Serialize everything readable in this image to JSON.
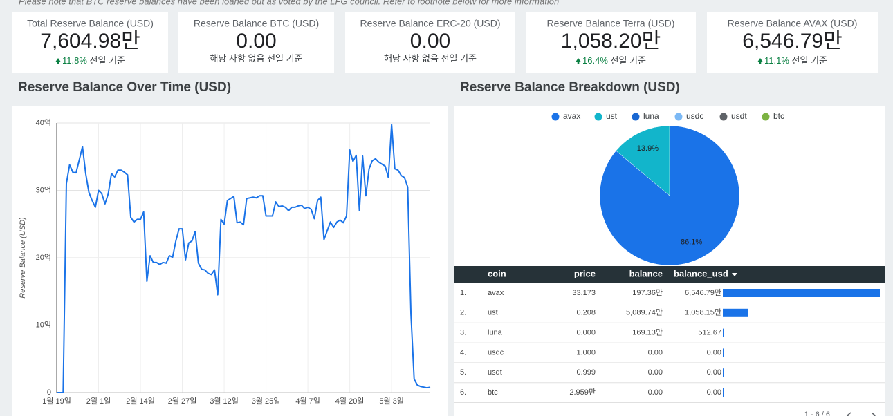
{
  "note": "Please note that BTC reserve balances have been loaned out as voted by the LFG council. Refer to footnote below for more information",
  "scorecards": [
    {
      "label": "Total Reserve Balance (USD)",
      "value": "7,604.98만",
      "delta": "11.8%",
      "comparison": "전일 기준"
    },
    {
      "label": "Reserve Balance BTC (USD)",
      "value": "0.00",
      "comparison": "해당 사항 없음 전일 기준"
    },
    {
      "label": "Reserve Balance ERC-20 (USD)",
      "value": "0.00",
      "comparison": "해당 사항 없음 전일 기준"
    },
    {
      "label": "Reserve Balance Terra (USD)",
      "value": "1,058.20만",
      "delta": "16.4%",
      "comparison": "전일 기준"
    },
    {
      "label": "Reserve Balance AVAX (USD)",
      "value": "6,546.79만",
      "delta": "11.1%",
      "comparison": "전일 기준"
    }
  ],
  "chart_data": [
    {
      "type": "line",
      "title": "Reserve Balance Over Time (USD)",
      "y_label": "Reserve Balance (USD)",
      "color": "#1a73e8",
      "grid": true,
      "ylim": [
        0,
        40
      ],
      "yticks": [
        0,
        {
          "value": 10,
          "label": "10억"
        },
        {
          "value": 20,
          "label": "20억"
        },
        {
          "value": 30,
          "label": "30억"
        },
        {
          "value": 40,
          "label": "40억"
        }
      ],
      "categories": [
        "1월 19일",
        null,
        null,
        null,
        null,
        null,
        null,
        null,
        null,
        null,
        null,
        null,
        null,
        "2월 1일",
        null,
        null,
        null,
        null,
        null,
        null,
        null,
        null,
        null,
        null,
        null,
        null,
        "2월 14일",
        null,
        null,
        null,
        null,
        null,
        null,
        null,
        null,
        null,
        null,
        null,
        null,
        "2월 27일",
        null,
        null,
        null,
        null,
        null,
        null,
        null,
        null,
        null,
        null,
        null,
        null,
        "3월 12일",
        null,
        null,
        null,
        null,
        null,
        null,
        null,
        null,
        null,
        null,
        null,
        null,
        "3월 25일",
        null,
        null,
        null,
        null,
        null,
        null,
        null,
        null,
        null,
        null,
        null,
        null,
        "4월 7일",
        null,
        null,
        null,
        null,
        null,
        null,
        null,
        null,
        null,
        null,
        null,
        null,
        "4월 20일",
        null,
        null,
        null,
        null,
        null,
        null,
        null,
        null,
        null,
        null,
        null,
        null,
        "5월 3일",
        null,
        null,
        null,
        null,
        null,
        null,
        null,
        null,
        null,
        null,
        null,
        null
      ],
      "values": [
        0,
        0,
        0,
        31,
        33.8,
        32.7,
        32.6,
        34.5,
        36.5,
        32.5,
        29.7,
        28.5,
        27.5,
        30,
        29.5,
        28,
        29.5,
        32.5,
        32,
        33,
        33,
        32.7,
        32.3,
        26,
        25.3,
        25.7,
        25.7,
        26.8,
        16.5,
        20.3,
        19.3,
        19.3,
        19,
        19.3,
        19.2,
        20.3,
        20.1,
        22.5,
        24.3,
        24.3,
        19.7,
        22.2,
        22.5,
        23.9,
        19.2,
        18.3,
        18.2,
        17.7,
        17.5,
        18.2,
        14.5,
        25.7,
        25,
        28.5,
        28.8,
        29.1,
        25.2,
        25.3,
        24.9,
        28.8,
        28.9,
        29,
        28.9,
        29.2,
        29.2,
        26.2,
        26.2,
        26.2,
        28.3,
        27.6,
        27.7,
        27.5,
        27,
        27.5,
        27.5,
        27.7,
        27.8,
        27.3,
        27.5,
        27.2,
        25.8,
        28.5,
        29,
        22.7,
        24,
        25.3,
        24.5,
        25.3,
        25.6,
        25.2,
        26.2,
        36,
        34.3,
        35.2,
        27,
        35.1,
        29.2,
        33.2,
        34.4,
        34.7,
        34.2,
        33.9,
        33.6,
        31.9,
        39.8,
        33.2,
        33,
        32.2,
        31.9,
        30.5,
        11.7,
        2,
        1.1,
        0.9,
        0.8,
        0.7,
        0.8
      ]
    },
    {
      "type": "pie",
      "title": "Reserve Balance Breakdown (USD)",
      "categories": [
        "avax",
        "ust",
        "luna",
        "usdc",
        "usdt",
        "btc"
      ],
      "values": [
        86.1,
        13.9,
        0,
        0,
        0,
        0
      ],
      "value_labels": [
        "86.1%",
        "13.9%",
        null,
        null,
        null,
        null
      ],
      "colors": [
        "#1a73e8",
        "#12b5cb",
        "#1967d2",
        "#7cb9f5",
        "#5f6368",
        "#7cb342"
      ]
    }
  ],
  "table": {
    "columns": [
      "coin",
      "price",
      "balance",
      "balance_usd"
    ],
    "rows": [
      {
        "rank": "1.",
        "coin": "avax",
        "price": "33.173",
        "balance": "197.36만",
        "balance_usd": {
          "value": 65467900,
          "label": "6,546.79만"
        }
      },
      {
        "rank": "2.",
        "coin": "ust",
        "price": "0.208",
        "balance": "5,089.74만",
        "balance_usd": {
          "value": 10581500,
          "label": "1,058.15만"
        }
      },
      {
        "rank": "3.",
        "coin": "luna",
        "price": "0.000",
        "balance": "169.13만",
        "balance_usd": {
          "value": 512.67,
          "label": "512.67"
        }
      },
      {
        "rank": "4.",
        "coin": "usdc",
        "price": "1.000",
        "balance": "0.00",
        "balance_usd": {
          "value": 0,
          "label": "0.00"
        }
      },
      {
        "rank": "5.",
        "coin": "usdt",
        "price": "0.999",
        "balance": "0.00",
        "balance_usd": {
          "value": 0,
          "label": "0.00"
        }
      },
      {
        "rank": "6.",
        "coin": "btc",
        "price": "2.959만",
        "balance": "0.00",
        "balance_usd": {
          "value": 0,
          "label": "0.00"
        }
      }
    ],
    "pagination": "1 - 6 / 6"
  }
}
